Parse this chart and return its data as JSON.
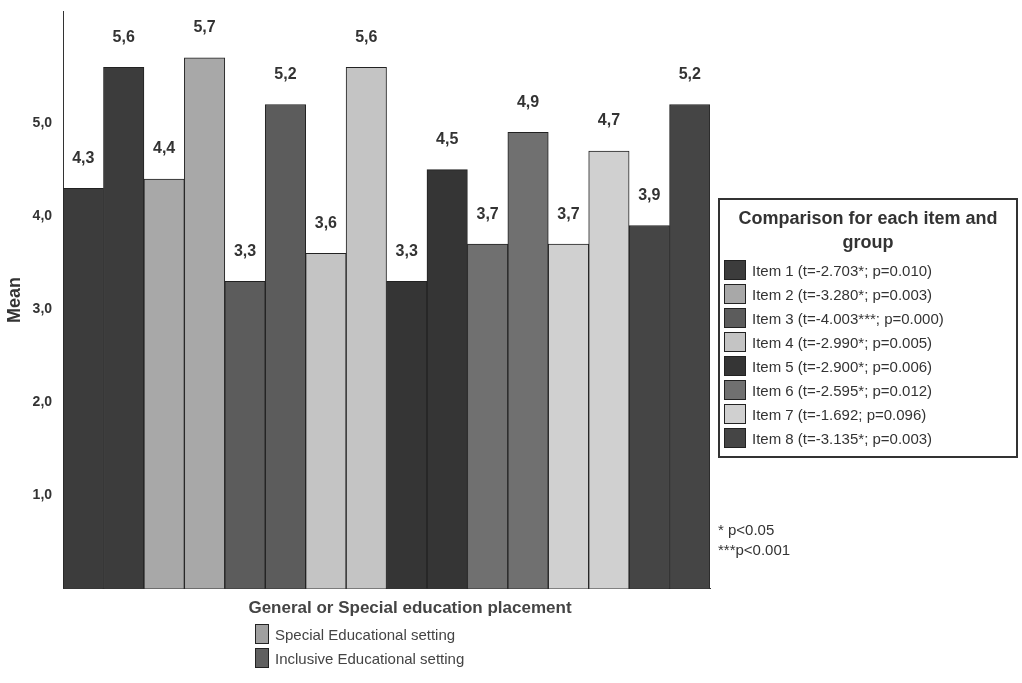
{
  "chart_data": {
    "type": "bar",
    "ylabel": "Mean",
    "xlabel": "General or Special education placement",
    "legend_title": "Comparison for each item and group",
    "legend": "bottom",
    "categories": [
      null,
      null,
      null,
      null,
      null,
      null,
      null,
      null
    ],
    "ylim": [
      0,
      6.2
    ],
    "yticks": [
      {
        "value": 1,
        "label": "1,0"
      },
      {
        "value": 2,
        "label": "2,0"
      },
      {
        "value": 3,
        "label": "3,0"
      },
      {
        "value": 4,
        "label": "4,0"
      },
      {
        "value": 5,
        "label": "5,0"
      }
    ],
    "grid": false,
    "series": [
      {
        "name": "Special Educational setting",
        "color": "#a0a0a0",
        "colors": [
          "#3c3c3c",
          "#a8a8a8",
          "#5c5c5c",
          "#c4c4c4",
          "#353535",
          "#707070",
          "#d0d0d0",
          "#454545"
        ],
        "values": [
          4.3,
          4.4,
          3.3,
          3.6,
          3.3,
          3.7,
          3.7,
          3.9
        ],
        "value_labels": [
          "4,3",
          "4,4",
          "3,3",
          "3,6",
          "3,3",
          "3,7",
          "3,7",
          "3,9"
        ]
      },
      {
        "name": "Inclusive Educational setting",
        "color": "#606060",
        "colors": [
          "#3c3c3c",
          "#a8a8a8",
          "#5c5c5c",
          "#c4c4c4",
          "#353535",
          "#707070",
          "#d0d0d0",
          "#454545"
        ],
        "values": [
          5.6,
          5.7,
          5.2,
          5.6,
          4.5,
          4.9,
          4.7,
          5.2
        ],
        "value_labels": [
          "5,6",
          "5,7",
          "5,2",
          "5,6",
          "4,5",
          "4,9",
          "4,7",
          "5,2"
        ]
      }
    ],
    "annotations": [
      "Item 1 (t=-2.703*; p=0.010)",
      "Item 2 (t=-3.280*; p=0.003)",
      "Item 3 (t=-4.003***; p=0.000)",
      "Item 4 (t=-2.990*; p=0.005)",
      "Item 5 (t=-2.900*; p=0.006)",
      "Item 6 (t=-2.595*; p=0.012)",
      "Item 7 (t=-1.692; p=0.096)",
      "Item 8 (t=-3.135*; p=0.003)",
      "* p<0.05",
      "***p<0.001"
    ]
  }
}
